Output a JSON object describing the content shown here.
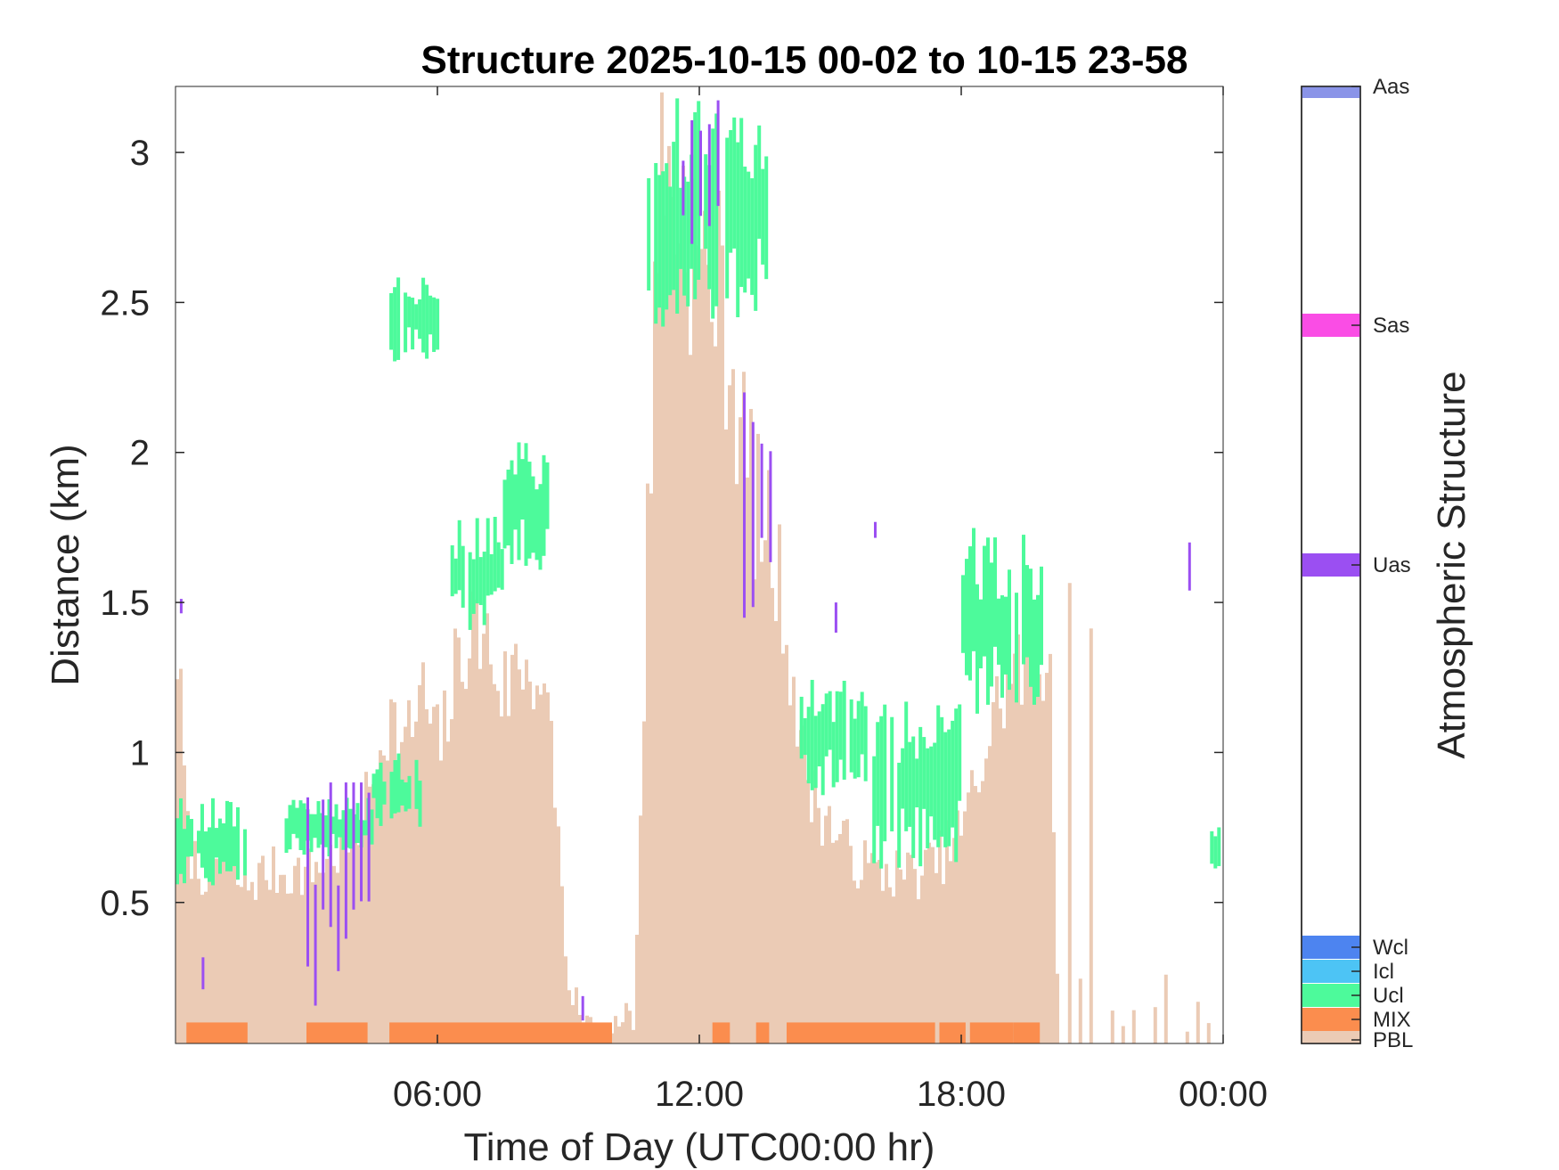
{
  "chart_data": {
    "type": "heatmap",
    "title": "Structure 2025-10-15 00-02 to 10-15 23-58",
    "xlabel": "Time of Day (UTC00:00 hr)",
    "ylabel": "Distance (km)",
    "xlim_hours": [
      0,
      24
    ],
    "ylim_km": [
      0.03,
      3.22
    ],
    "x_ticks": [
      {
        "value": 6,
        "label": "06:00"
      },
      {
        "value": 12,
        "label": "12:00"
      },
      {
        "value": 18,
        "label": "18:00"
      },
      {
        "value": 24,
        "label": "00:00"
      }
    ],
    "y_ticks": [
      {
        "value": 0.5,
        "label": "0.5"
      },
      {
        "value": 1,
        "label": "1"
      },
      {
        "value": 1.5,
        "label": "1.5"
      },
      {
        "value": 2,
        "label": "2"
      },
      {
        "value": 2.5,
        "label": "2.5"
      },
      {
        "value": 3,
        "label": "3"
      }
    ],
    "colorbar": {
      "label": "Atmospheric Structure",
      "categories": [
        {
          "code": "PBL",
          "color": "#ebcbb5"
        },
        {
          "code": "MIX",
          "color": "#fb8d4e"
        },
        {
          "code": "Ucl",
          "color": "#4dfa9b"
        },
        {
          "code": "Icl",
          "color": "#4dc4f5"
        },
        {
          "code": "Wcl",
          "color": "#4d84f0"
        },
        {
          "code": "Uas",
          "color": "#9b4ff2"
        },
        {
          "code": "Sas",
          "color": "#fa4de5"
        },
        {
          "code": "Aas",
          "color": "#8a94e8"
        }
      ]
    },
    "grid": false,
    "pbl_top_km": [
      [
        0.0,
        1.35
      ],
      [
        0.25,
        0.7
      ],
      [
        0.5,
        0.6
      ],
      [
        1.0,
        0.65
      ],
      [
        1.5,
        0.55
      ],
      [
        2.0,
        0.6
      ],
      [
        2.5,
        0.6
      ],
      [
        3.0,
        0.6
      ],
      [
        3.5,
        0.65
      ],
      [
        4.0,
        0.7
      ],
      [
        4.5,
        0.9
      ],
      [
        4.8,
        1.15
      ],
      [
        5.2,
        1.0
      ],
      [
        5.6,
        1.2
      ],
      [
        6.0,
        1.0
      ],
      [
        6.3,
        1.2
      ],
      [
        6.6,
        1.4
      ],
      [
        7.0,
        1.4
      ],
      [
        7.5,
        1.2
      ],
      [
        7.8,
        1.3
      ],
      [
        8.2,
        1.3
      ],
      [
        8.6,
        1.0
      ],
      [
        9.0,
        0.15
      ],
      [
        9.5,
        0.1
      ],
      [
        10.0,
        0.05
      ],
      [
        10.5,
        0.2
      ],
      [
        11.0,
        2.9
      ],
      [
        11.3,
        2.9
      ],
      [
        11.6,
        2.8
      ],
      [
        12.0,
        2.6
      ],
      [
        12.3,
        2.6
      ],
      [
        12.6,
        2.4
      ],
      [
        13.0,
        2.0
      ],
      [
        13.3,
        1.8
      ],
      [
        13.6,
        1.7
      ],
      [
        14.0,
        1.4
      ],
      [
        14.3,
        1.0
      ],
      [
        14.6,
        0.85
      ],
      [
        15.0,
        0.75
      ],
      [
        15.5,
        0.65
      ],
      [
        16.0,
        0.6
      ],
      [
        16.5,
        0.6
      ],
      [
        17.0,
        0.6
      ],
      [
        17.5,
        0.65
      ],
      [
        18.0,
        0.75
      ],
      [
        18.5,
        1.0
      ],
      [
        19.0,
        1.25
      ],
      [
        19.5,
        1.3
      ],
      [
        20.0,
        1.35
      ],
      [
        20.2,
        0.0
      ]
    ],
    "ucl_layers": [
      {
        "x": [
          0.0,
          1.6
        ],
        "y": [
          0.55,
          0.85
        ]
      },
      {
        "x": [
          2.5,
          4.5
        ],
        "y": [
          0.65,
          0.85
        ]
      },
      {
        "x": [
          4.5,
          5.6
        ],
        "y": [
          0.75,
          1.0
        ]
      },
      {
        "x": [
          4.9,
          6.0
        ],
        "y": [
          2.3,
          2.6
        ]
      },
      {
        "x": [
          6.3,
          7.5
        ],
        "y": [
          1.4,
          1.8
        ]
      },
      {
        "x": [
          7.5,
          8.6
        ],
        "y": [
          1.6,
          2.05
        ]
      },
      {
        "x": [
          10.8,
          13.5
        ],
        "y": [
          2.4,
          3.2
        ]
      },
      {
        "x": [
          14.3,
          15.8
        ],
        "y": [
          0.85,
          1.25
        ]
      },
      {
        "x": [
          15.8,
          18.0
        ],
        "y": [
          0.6,
          1.2
        ]
      },
      {
        "x": [
          18.0,
          19.8
        ],
        "y": [
          1.1,
          1.75
        ]
      },
      {
        "x": [
          23.7,
          23.9
        ],
        "y": [
          0.6,
          0.8
        ]
      }
    ],
    "uas_layers": [
      {
        "x": [
          0.1,
          0.15
        ],
        "y": [
          1.45,
          1.55
        ]
      },
      {
        "x": [
          0.6,
          0.7
        ],
        "y": [
          0.15,
          0.35
        ]
      },
      {
        "x": [
          3.0,
          4.4
        ],
        "y": [
          0.15,
          0.9
        ]
      },
      {
        "x": [
          9.3,
          9.35
        ],
        "y": [
          0.05,
          0.2
        ]
      },
      {
        "x": [
          11.6,
          12.4
        ],
        "y": [
          2.6,
          3.2
        ]
      },
      {
        "x": [
          13.0,
          13.6
        ],
        "y": [
          1.3,
          2.2
        ]
      },
      {
        "x": [
          15.1,
          15.2
        ],
        "y": [
          1.3,
          1.5
        ]
      },
      {
        "x": [
          16.0,
          16.05
        ],
        "y": [
          1.65,
          1.8
        ]
      },
      {
        "x": [
          23.2,
          23.25
        ],
        "y": [
          1.5,
          1.7
        ]
      }
    ],
    "mix_segments_hours": [
      [
        0.25,
        1.65
      ],
      [
        3.0,
        4.4
      ],
      [
        4.9,
        10.0
      ],
      [
        12.3,
        12.7
      ],
      [
        13.3,
        13.6
      ],
      [
        14.0,
        15.0
      ],
      [
        15.0,
        17.4
      ],
      [
        17.5,
        18.1
      ],
      [
        18.2,
        19.2
      ],
      [
        19.2,
        19.8
      ]
    ],
    "mix_height_km": [
      0.03,
      0.1
    ]
  }
}
